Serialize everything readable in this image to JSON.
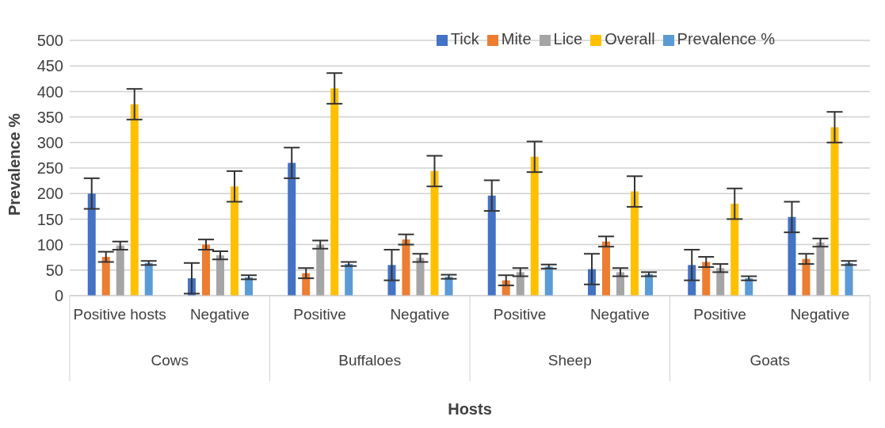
{
  "chart_data": {
    "type": "bar",
    "xlabel": "Hosts",
    "ylabel": "Prevalence %",
    "categories": [
      "Positive hosts",
      "Negative",
      "Positive",
      "Negative",
      "Positive",
      "Negative",
      "Positive",
      "Negative"
    ],
    "annotations": [
      "Cows",
      "Buffaloes",
      "Sheep",
      "Goats"
    ],
    "series": [
      {
        "name": "Tick",
        "color": "#4472c4",
        "values": [
          200,
          34,
          260,
          60,
          196,
          52,
          60,
          154
        ],
        "errors": [
          30,
          30,
          30,
          30,
          30,
          30,
          30,
          30
        ]
      },
      {
        "name": "Mite",
        "color": "#ed7d31",
        "values": [
          76,
          100,
          44,
          110,
          30,
          106,
          66,
          72
        ],
        "errors": [
          10,
          10,
          10,
          10,
          10,
          10,
          10,
          10
        ]
      },
      {
        "name": "Lice",
        "color": "#a5a5a5",
        "values": [
          98,
          79,
          100,
          74,
          46,
          46,
          54,
          104
        ],
        "errors": [
          8,
          8,
          8,
          8,
          8,
          8,
          8,
          8
        ]
      },
      {
        "name": "Overall",
        "color": "#ffc000",
        "values": [
          375,
          214,
          406,
          244,
          272,
          204,
          180,
          330
        ],
        "errors": [
          30,
          30,
          30,
          30,
          30,
          30,
          30,
          30
        ]
      },
      {
        "name": "Prevalence %",
        "color": "#5b9bd5",
        "values": [
          64,
          36,
          62,
          37,
          57,
          42,
          34,
          64
        ],
        "errors": [
          4,
          4,
          4,
          4,
          4,
          4,
          4,
          4
        ]
      }
    ],
    "ylim": [
      0,
      500
    ],
    "yticks": [
      0,
      50,
      100,
      150,
      200,
      250,
      300,
      350,
      400,
      450,
      500
    ],
    "grid": "y",
    "legend": "top right"
  }
}
